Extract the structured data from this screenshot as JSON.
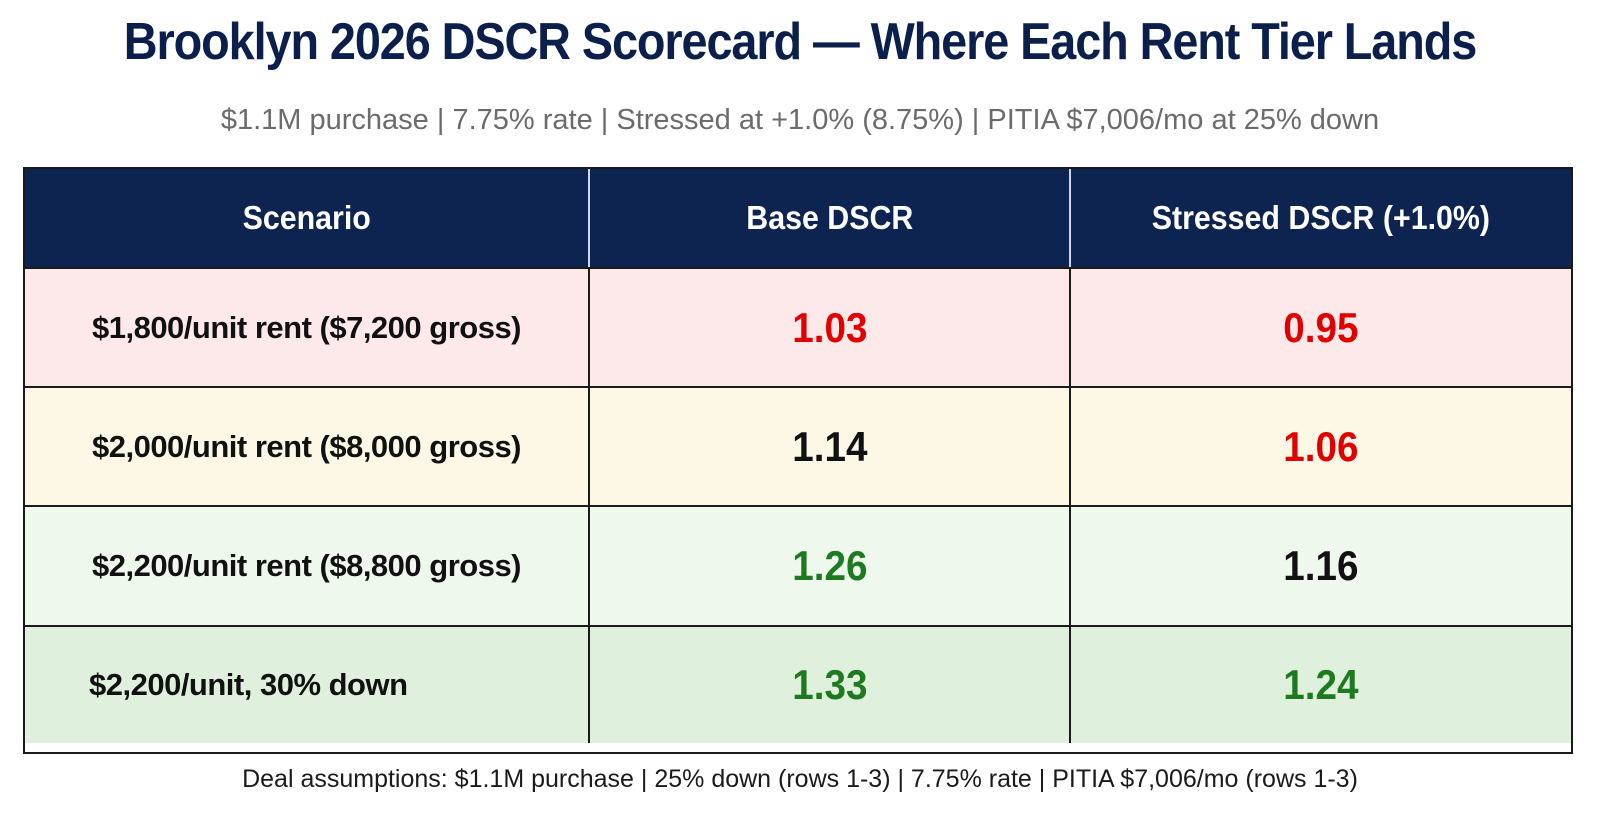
{
  "header": {
    "title": "Brooklyn 2026 DSCR Scorecard — Where Each Rent Tier Lands",
    "subtitle": "$1.1M purchase | 7.75% rate | Stressed at +1.0% (8.75%) | PITIA $7,006/mo at 25% down"
  },
  "colors": {
    "header_bg": "#0d2350",
    "title": "#0b1f4d",
    "red": "#e00000",
    "black": "#111111",
    "green": "#1e7a1e"
  },
  "chart_data": {
    "type": "table",
    "columns": [
      "Scenario",
      "Base DSCR",
      "Stressed DSCR (+1.0%)"
    ],
    "rows": [
      {
        "scenario": "$1,800/unit rent ($7,200 gross)",
        "base": "1.03",
        "stressed": "0.95",
        "base_color": "#e00000",
        "stressed_color": "#e00000",
        "row_bg": "#fde9ea",
        "align": "center"
      },
      {
        "scenario": "$2,000/unit rent ($8,000 gross)",
        "base": "1.14",
        "stressed": "1.06",
        "base_color": "#111111",
        "stressed_color": "#e00000",
        "row_bg": "#fdf8e6",
        "align": "center"
      },
      {
        "scenario": "$2,200/unit rent ($8,800 gross)",
        "base": "1.26",
        "stressed": "1.16",
        "base_color": "#1e7a1e",
        "stressed_color": "#111111",
        "row_bg": "#eef8ec",
        "align": "center"
      },
      {
        "scenario": "$2,200/unit, 30% down",
        "base": "1.33",
        "stressed": "1.24",
        "base_color": "#1e7a1e",
        "stressed_color": "#1e7a1e",
        "row_bg": "#dff1dc",
        "align": "left"
      }
    ]
  },
  "footnote": "Deal assumptions: $1.1M purchase | 25% down (rows 1-3) | 7.75% rate | PITIA $7,006/mo (rows 1-3)"
}
